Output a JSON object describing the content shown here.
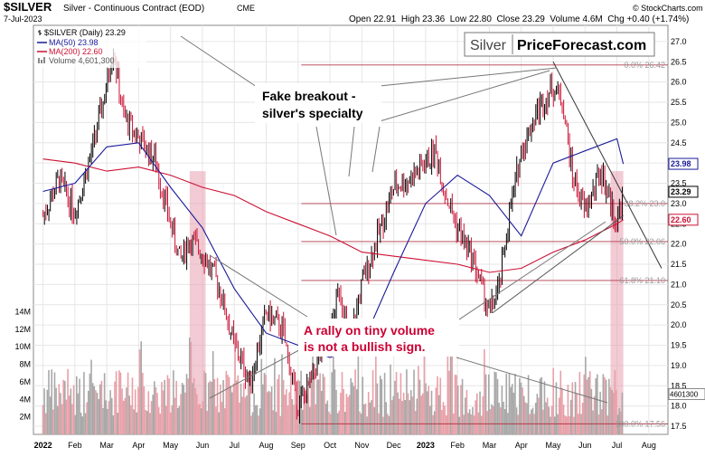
{
  "header": {
    "ticker": "$SILVER",
    "name": "Silver - Continuous Contract (EOD)",
    "exchange": "CME",
    "date": "7-Jul-2023",
    "ohlc": "Open 22.91  High 23.36  Low 22.80  Close 23.29  Volume 4.6M  Chg +0.40 (+1.74%)",
    "change_arrow": "▲",
    "copyright": "© StockCharts.com"
  },
  "legend": {
    "price": "$SILVER (Daily) 23.29",
    "ma50": "MA(50) 23.98",
    "ma200": "MA(200) 22.60",
    "volume": "Volume 4,601,300"
  },
  "watermark": {
    "left": "Silver",
    "right": "PriceForecast.com"
  },
  "annotations": {
    "fake_breakout_line1": "Fake breakout -",
    "fake_breakout_line2": "silver's specialty",
    "rally_line1": "A rally on tiny volume",
    "rally_line2": "is not a bullish sign."
  },
  "fib_labels": [
    "0.0% 26.42",
    "38.2% 23.0",
    "50.0% 22.06",
    "61.8% 21.10",
    "100.0% 17.56"
  ],
  "price_tags": {
    "ma50": "23.98",
    "close": "23.29",
    "ma200": "22.60",
    "volume": "4601300"
  },
  "colors": {
    "price_up": "#000000",
    "price_down": "#cc1133",
    "ma50": "#1a1a9a",
    "ma200": "#cc1133",
    "volume_up": "#a8a8a8",
    "volume_down": "#e8a0a8",
    "highlight": "#e8a0b0",
    "fib_line": "#b23a48",
    "annotation_red": "#cc0033"
  },
  "chart_data": {
    "type": "line",
    "title": "$SILVER Silver - Continuous Contract (EOD) CME",
    "price_axis_ticks": [
      17.5,
      18.0,
      18.5,
      19.0,
      19.5,
      20.0,
      20.5,
      21.0,
      21.5,
      22.0,
      22.5,
      23.0,
      23.5,
      24.0,
      24.5,
      25.0,
      25.5,
      26.0,
      26.5,
      27.0
    ],
    "price_axis_labels": [
      "17.5",
      "18.0",
      "18.5",
      "19.0",
      "19.5",
      "20.0",
      "20.5",
      "21.0",
      "21.5",
      "22.0",
      "22.5",
      "23.0",
      "23.5",
      "24.0",
      "24.5",
      "25.0",
      "25.5",
      "26.0",
      "26.5",
      "27.0"
    ],
    "ylim": [
      17.3,
      27.4
    ],
    "volume_axis_labels": [
      "2M",
      "4M",
      "6M",
      "8M",
      "10M",
      "12M",
      "14M"
    ],
    "volume_axis_values": [
      2,
      4,
      6,
      8,
      10,
      12,
      14
    ],
    "volume_unit": "M",
    "x_axis_labels": [
      "2022",
      "Feb",
      "Mar",
      "Apr",
      "May",
      "Jun",
      "Jul",
      "Aug",
      "Sep",
      "Oct",
      "Nov",
      "Dec",
      "2023",
      "Feb",
      "Mar",
      "Apr",
      "May",
      "Jun",
      "Jul",
      "Aug"
    ],
    "x_axis_month_index": [
      0,
      1,
      2,
      3,
      4,
      5,
      6,
      7,
      8,
      9,
      10,
      11,
      12,
      13,
      14,
      15,
      16,
      17,
      18,
      19
    ],
    "xlim_months": [
      -0.3,
      19.6
    ],
    "series": [
      {
        "name": "$SILVER (Daily)",
        "x_month": [
          0,
          0.5,
          1,
          1.5,
          2,
          2.2,
          2.5,
          3,
          3.5,
          4,
          4.3,
          4.6,
          5,
          5.5,
          6,
          6.5,
          7,
          7.5,
          8,
          8.3,
          8.6,
          9,
          9.3,
          9.6,
          10,
          10.5,
          11,
          11.5,
          12,
          12.3,
          12.6,
          13,
          13.5,
          14,
          14.3,
          14.6,
          15,
          15.5,
          16,
          16.3,
          16.6,
          17,
          17.5,
          18,
          18.2
        ],
        "values": [
          22.7,
          23.6,
          22.8,
          24.2,
          25.9,
          26.9,
          25.2,
          24.6,
          24.1,
          22.5,
          21.6,
          22.1,
          21.8,
          21.0,
          19.5,
          18.6,
          20.3,
          19.9,
          18.0,
          18.4,
          19.1,
          19.7,
          21.0,
          19.5,
          21.0,
          22.2,
          23.4,
          23.6,
          24.0,
          24.3,
          23.3,
          22.4,
          21.6,
          20.3,
          20.9,
          22.6,
          24.3,
          25.3,
          25.9,
          25.5,
          23.7,
          22.8,
          23.8,
          22.5,
          23.29
        ]
      },
      {
        "name": "MA(50)",
        "x_month": [
          0,
          1,
          2,
          3,
          4,
          5,
          6,
          7,
          8,
          9,
          10,
          11,
          12,
          13,
          14,
          15,
          16,
          17,
          18,
          18.2
        ],
        "values": [
          23.3,
          23.5,
          24.4,
          24.5,
          23.4,
          22.4,
          20.9,
          19.8,
          19.5,
          19.2,
          19.5,
          21.3,
          23.0,
          23.7,
          23.2,
          22.2,
          24.0,
          24.3,
          24.6,
          23.98
        ]
      },
      {
        "name": "MA(200)",
        "x_month": [
          0,
          1,
          2,
          3,
          4,
          5,
          6,
          7,
          8,
          9,
          10,
          11,
          12,
          13,
          14,
          15,
          16,
          17,
          18,
          18.2
        ],
        "values": [
          24.1,
          24.0,
          23.8,
          23.9,
          23.7,
          23.4,
          23.2,
          22.8,
          22.5,
          22.2,
          21.8,
          21.7,
          21.6,
          21.5,
          21.3,
          21.4,
          21.8,
          22.1,
          22.5,
          22.6
        ]
      }
    ],
    "volume_series": {
      "name": "Volume",
      "last_value": 4601300
    },
    "fib_levels": [
      {
        "name": "0.0%",
        "value": 26.42
      },
      {
        "name": "38.2%",
        "value": 23.0
      },
      {
        "name": "50.0%",
        "value": 22.06
      },
      {
        "name": "61.8%",
        "value": 21.1
      },
      {
        "name": "100.0%",
        "value": 17.56
      }
    ],
    "highlight_ranges_months": [
      [
        4.6,
        5.1
      ],
      [
        17.8,
        18.2
      ]
    ],
    "grid": true
  }
}
